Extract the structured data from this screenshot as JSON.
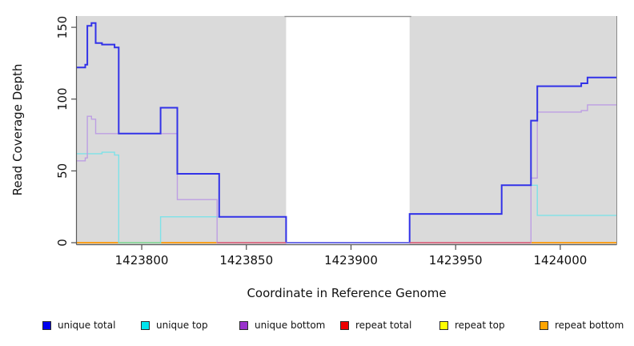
{
  "axes": {
    "xlabel": "Coordinate in Reference Genome",
    "ylabel": "Read Coverage Depth"
  },
  "panel": {
    "background_color": "#DADADA",
    "gap_color": "#FFFFFF",
    "spine_color": "#5a5a5a",
    "top_gap_border_color": "#909090"
  },
  "chart_data": {
    "type": "line",
    "subtype": "step",
    "title": "",
    "xlabel": "Coordinate in Reference Genome",
    "ylabel": "Read Coverage Depth",
    "xlim": [
      1423769,
      1424027
    ],
    "ylim": [
      0,
      158
    ],
    "grid": false,
    "legend_position": "bottom",
    "x_ticks": [
      {
        "value": 1423800,
        "label": "1423800"
      },
      {
        "value": 1423850,
        "label": "1423850"
      },
      {
        "value": 1423900,
        "label": "1423900"
      },
      {
        "value": 1423950,
        "label": "1423950"
      },
      {
        "value": 1424000,
        "label": "1424000"
      }
    ],
    "y_ticks": [
      {
        "value": 0,
        "label": "0"
      },
      {
        "value": 50,
        "label": "50"
      },
      {
        "value": 100,
        "label": "100"
      },
      {
        "value": 150,
        "label": "150"
      }
    ],
    "background_bands": [
      {
        "x0": 1423769,
        "x1": 1423869,
        "color": "#DADADA"
      },
      {
        "x0": 1423869,
        "x1": 1423928,
        "color": "#FFFFFF"
      },
      {
        "x0": 1423928,
        "x1": 1424027,
        "color": "#DADADA"
      }
    ],
    "series": [
      {
        "name": "unique total",
        "legend_color": "#0000EE",
        "line_color": "#3232E8",
        "line_width": 2,
        "step_points": [
          [
            1423769,
            122
          ],
          [
            1423773,
            124
          ],
          [
            1423774,
            151
          ],
          [
            1423776,
            153
          ],
          [
            1423778,
            139
          ],
          [
            1423781,
            138
          ],
          [
            1423787,
            136
          ],
          [
            1423789,
            76
          ],
          [
            1423809,
            94
          ],
          [
            1423817,
            48
          ],
          [
            1423837,
            18
          ],
          [
            1423869,
            0
          ],
          [
            1423928,
            20
          ],
          [
            1423972,
            40
          ],
          [
            1423986,
            85
          ],
          [
            1423989,
            109
          ],
          [
            1424010,
            111
          ],
          [
            1424013,
            115
          ]
        ]
      },
      {
        "name": "unique top",
        "legend_color": "#00E5EE",
        "line_color": "#7EE2E8",
        "line_width": 1.4,
        "step_points": [
          [
            1423769,
            62
          ],
          [
            1423781,
            63
          ],
          [
            1423787,
            61
          ],
          [
            1423789,
            0
          ],
          [
            1423809,
            18
          ],
          [
            1423869,
            0
          ],
          [
            1423928,
            20
          ],
          [
            1423972,
            40
          ],
          [
            1423989,
            19
          ]
        ]
      },
      {
        "name": "unique bottom",
        "legend_color": "#9932CC",
        "line_color": "#BD9EE3",
        "line_width": 1.4,
        "step_points": [
          [
            1423769,
            57
          ],
          [
            1423773,
            59
          ],
          [
            1423774,
            88
          ],
          [
            1423776,
            86
          ],
          [
            1423778,
            76
          ],
          [
            1423817,
            30
          ],
          [
            1423836,
            0
          ],
          [
            1423986,
            45
          ],
          [
            1423989,
            91
          ],
          [
            1424010,
            92
          ],
          [
            1424013,
            96
          ]
        ]
      },
      {
        "name": "repeat total",
        "legend_color": "#EE0000",
        "line_color": "#EE0000",
        "line_width": 1.2,
        "step_points": [
          [
            1423769,
            0
          ]
        ]
      },
      {
        "name": "repeat top",
        "legend_color": "#FFFF00",
        "line_color": "#FFFF00",
        "line_width": 1.2,
        "step_points": [
          [
            1423769,
            0
          ]
        ]
      },
      {
        "name": "repeat bottom",
        "legend_color": "#FFA500",
        "line_color": "#FF9800",
        "line_width": 1.6,
        "step_points": [
          [
            1423769,
            0
          ]
        ]
      }
    ],
    "draw_order": [
      "repeat total",
      "repeat top",
      "repeat bottom",
      "unique top",
      "unique bottom",
      "unique total"
    ],
    "zero_overlay_segments": [
      {
        "x0": 1423789,
        "x1": 1423809,
        "color": "#82DCA5"
      },
      {
        "x0": 1423836,
        "x1": 1423869,
        "color": "#D96286"
      },
      {
        "x0": 1423869,
        "x1": 1423928,
        "color": "#8585E8"
      },
      {
        "x0": 1423928,
        "x1": 1423986,
        "color": "#D96286"
      }
    ]
  },
  "legend": {
    "items": [
      {
        "label": "unique total",
        "color": "#0000EE"
      },
      {
        "label": "unique top",
        "color": "#00E5EE"
      },
      {
        "label": "unique bottom",
        "color": "#9932CC"
      },
      {
        "label": "repeat total",
        "color": "#EE0000"
      },
      {
        "label": "repeat top",
        "color": "#FFFF00"
      },
      {
        "label": "repeat bottom",
        "color": "#FFA500"
      }
    ]
  }
}
